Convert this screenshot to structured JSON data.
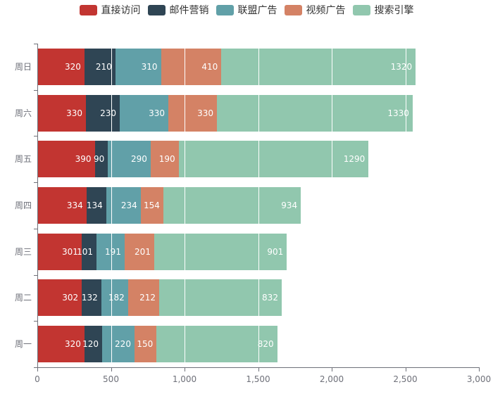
{
  "chart_data": {
    "type": "bar",
    "orientation": "horizontal",
    "stacked": true,
    "title": "",
    "legend_position": "top",
    "grid": "on",
    "background": "#ffffff",
    "axis_color": "#6E7079",
    "gridline_color": "#ffffff",
    "bar_label_color": "#ffffff",
    "legend_text_color": "#333333",
    "categories_top_to_bottom": [
      "周日",
      "周六",
      "周五",
      "周四",
      "周三",
      "周二",
      "周一"
    ],
    "series": [
      {
        "name": "直接访问",
        "color": "#c23531",
        "values": [
          320,
          330,
          390,
          334,
          301,
          302,
          320
        ]
      },
      {
        "name": "邮件营销",
        "color": "#2f4554",
        "values": [
          210,
          230,
          90,
          134,
          101,
          132,
          120
        ]
      },
      {
        "name": "联盟广告",
        "color": "#61a0a8",
        "values": [
          310,
          330,
          290,
          234,
          191,
          182,
          220
        ]
      },
      {
        "name": "视频广告",
        "color": "#d48265",
        "values": [
          410,
          330,
          190,
          154,
          201,
          212,
          150
        ]
      },
      {
        "name": "搜索引擎",
        "color": "#91c7ae",
        "values": [
          1320,
          1330,
          1290,
          934,
          901,
          832,
          820
        ]
      }
    ],
    "totals_top_to_bottom": [
      2570,
      2550,
      2250,
      1790,
      1695,
      1660,
      1630
    ],
    "xlim": [
      0,
      3000
    ],
    "x_tick_values": [
      0,
      500,
      1000,
      1500,
      2000,
      2500,
      3000
    ],
    "x_tick_labels": [
      "0",
      "500",
      "1,000",
      "1,500",
      "2,000",
      "2,500",
      "3,000"
    ]
  }
}
